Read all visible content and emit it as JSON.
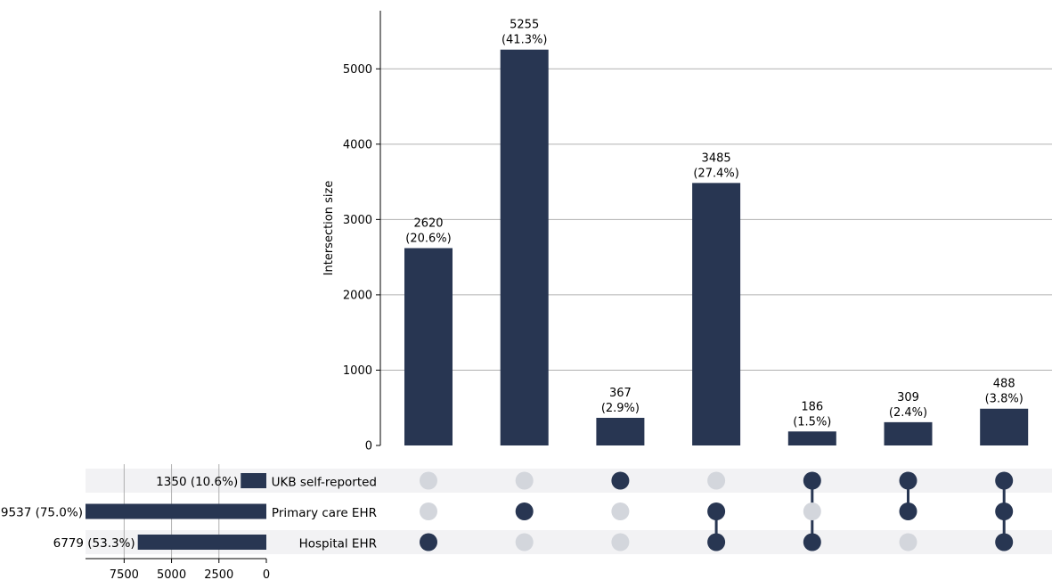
{
  "chart_data": {
    "type": "upset",
    "ylabel": "Intersection size",
    "ylim": [
      0,
      5500
    ],
    "yticks": [
      0,
      1000,
      2000,
      3000,
      4000,
      5000
    ],
    "grid": true,
    "sets": [
      {
        "name": "UKB self-reported",
        "size": 1350,
        "label": "1350 (10.6%)"
      },
      {
        "name": "Primary care EHR",
        "size": 9537,
        "label": "9537 (75.0%)"
      },
      {
        "name": "Hospital EHR",
        "size": 6779,
        "label": "6779 (53.3%)"
      }
    ],
    "set_size_ticks": [
      7500,
      5000,
      2500,
      0
    ],
    "set_size_xlim": [
      9537,
      0
    ],
    "intersections": [
      {
        "members": [
          false,
          false,
          true
        ],
        "value": 2620,
        "count_label": "2620",
        "pct_label": "(20.6%)"
      },
      {
        "members": [
          false,
          true,
          false
        ],
        "value": 5255,
        "count_label": "5255",
        "pct_label": "(41.3%)"
      },
      {
        "members": [
          true,
          false,
          false
        ],
        "value": 367,
        "count_label": "367",
        "pct_label": "(2.9%)"
      },
      {
        "members": [
          false,
          true,
          true
        ],
        "value": 3485,
        "count_label": "3485",
        "pct_label": "(27.4%)"
      },
      {
        "members": [
          true,
          false,
          true
        ],
        "value": 186,
        "count_label": "186",
        "pct_label": "(1.5%)"
      },
      {
        "members": [
          true,
          true,
          false
        ],
        "value": 309,
        "count_label": "309",
        "pct_label": "(2.4%)"
      },
      {
        "members": [
          true,
          true,
          true
        ],
        "value": 488,
        "count_label": "488",
        "pct_label": "(3.8%)"
      }
    ],
    "colors": {
      "bar": "#283652",
      "dot_off": "#d3d6dc",
      "row_band": "#f2f2f4",
      "grid": "#b0b0b0"
    }
  }
}
